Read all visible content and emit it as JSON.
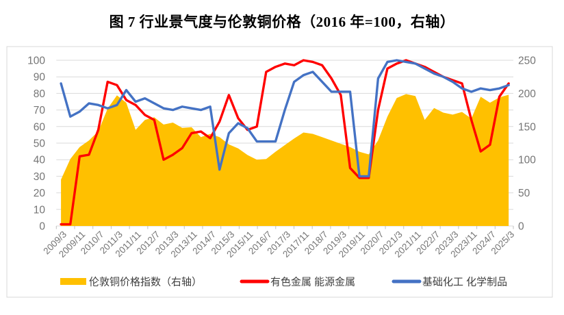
{
  "title": "图 7 行业景气度与伦敦铜价格（2016 年=100，右轴）",
  "colors": {
    "area": "#FFC000",
    "red_line": "#FF0000",
    "blue_line": "#4472C4",
    "grid": "#D9D9D9",
    "frame": "#D9D9D9",
    "axis_text": "#757575",
    "legend_text": "#404040"
  },
  "chart_data": {
    "type": "area",
    "title": "图 7 行业景气度与伦敦铜价格（2016 年=100，右轴）",
    "grid": true,
    "legend_position": "bottom",
    "left_axis": {
      "min": 0,
      "max": 100,
      "step": 10,
      "ticks": [
        0,
        10,
        20,
        30,
        40,
        50,
        60,
        70,
        80,
        90,
        100
      ]
    },
    "right_axis": {
      "min": 0,
      "max": 250,
      "step": 50,
      "ticks": [
        0,
        50,
        100,
        150,
        200,
        250
      ]
    },
    "x_tick_labels": [
      "2009/3",
      "2009/11",
      "2010/7",
      "2011/3",
      "2011/11",
      "2012/7",
      "2013/3",
      "2013/11",
      "2014/7",
      "2015/3",
      "2015/11",
      "2016/7",
      "2017/3",
      "2017/11",
      "2018/7",
      "2019/3",
      "2019/11",
      "2020/7",
      "2021/3",
      "2021/11",
      "2022/7",
      "2023/3",
      "2023/11",
      "2024/7",
      "2025/3"
    ],
    "categories": [
      "2009/3",
      "2009/7",
      "2009/11",
      "2010/3",
      "2010/7",
      "2010/11",
      "2011/3",
      "2011/7",
      "2011/11",
      "2012/3",
      "2012/7",
      "2012/11",
      "2013/3",
      "2013/7",
      "2013/11",
      "2014/3",
      "2014/7",
      "2014/11",
      "2015/3",
      "2015/7",
      "2015/11",
      "2016/3",
      "2016/7",
      "2016/11",
      "2017/3",
      "2017/7",
      "2017/11",
      "2018/3",
      "2018/7",
      "2018/11",
      "2019/3",
      "2019/7",
      "2019/11",
      "2020/3",
      "2020/7",
      "2020/11",
      "2021/3",
      "2021/7",
      "2021/11",
      "2022/3",
      "2022/7",
      "2022/11",
      "2023/3",
      "2023/7",
      "2023/11",
      "2024/3",
      "2024/7",
      "2024/11",
      "2025/3"
    ],
    "series": [
      {
        "name": "伦敦铜价格指数（右轴）",
        "type": "area",
        "axis": "right",
        "color": "#FFC000",
        "values": [
          70,
          101,
          119,
          129,
          143,
          177,
          197,
          186,
          145,
          160,
          164,
          153,
          156,
          148,
          149,
          134,
          139,
          134,
          123,
          117,
          107,
          100,
          101,
          112,
          122,
          132,
          141,
          139,
          134,
          129,
          124,
          119,
          112,
          108,
          129,
          165,
          193,
          199,
          196,
          160,
          178,
          171,
          168,
          172,
          162,
          195,
          186,
          194,
          198
        ]
      },
      {
        "name": "有色金属 能源金属",
        "type": "line",
        "axis": "left",
        "color": "#FF0000",
        "values": [
          1,
          1,
          42,
          43,
          58,
          87,
          85,
          76,
          73,
          67,
          64,
          40,
          43,
          47,
          56,
          57,
          53,
          63,
          79,
          65,
          58,
          60,
          93,
          96,
          98,
          97,
          100,
          99,
          97,
          89,
          79,
          35,
          29,
          29,
          70,
          95,
          98,
          100,
          98,
          96,
          93,
          90,
          88,
          86,
          64,
          45,
          49,
          78,
          86
        ]
      },
      {
        "name": "基础化工 化学制品",
        "type": "line",
        "axis": "left",
        "color": "#4472C4",
        "values": [
          86,
          66,
          69,
          74,
          73,
          71,
          73,
          82,
          75,
          77,
          74,
          71,
          70,
          72,
          71,
          70,
          72,
          34,
          56,
          62,
          59,
          51,
          51,
          51,
          70,
          87,
          91,
          93,
          87,
          81,
          81,
          81,
          30,
          30,
          89,
          99,
          100,
          99,
          98,
          95,
          92,
          90,
          87,
          83,
          81,
          83,
          82,
          83,
          85
        ]
      }
    ]
  }
}
